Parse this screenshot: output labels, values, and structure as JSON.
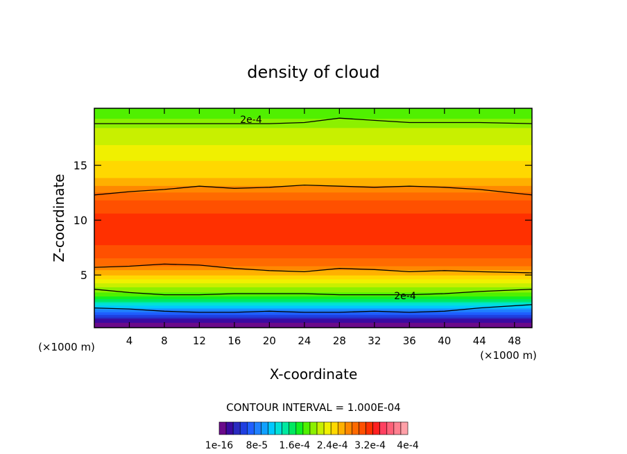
{
  "chart_data": {
    "type": "heatmap",
    "title": "density of cloud",
    "xlabel": "X-coordinate",
    "ylabel": "Z-coordinate",
    "x_unit": "(×1000 m)",
    "x_unit_right": "(×1000 m)",
    "xlim": [
      0,
      50
    ],
    "ylim": [
      0.2,
      20.2
    ],
    "x_ticks": [
      4,
      8,
      12,
      16,
      20,
      24,
      28,
      32,
      36,
      40,
      44,
      48
    ],
    "y_ticks": [
      5,
      10,
      15
    ],
    "contour_interval_text": "CONTOUR INTERVAL = 1.000E-04",
    "contour_labels": [
      "2e-4",
      "2e-4"
    ],
    "colorbar": {
      "labels": [
        "1e-16",
        "8e-5",
        "1.6e-4",
        "2.4e-4",
        "3.2e-4",
        "4e-4"
      ],
      "min": 1e-16,
      "max": 0.0004,
      "colors": [
        "#6a0a8a",
        "#3a0aa0",
        "#2a2ac0",
        "#1f3fe0",
        "#1f5fff",
        "#1f80ff",
        "#10a0ff",
        "#00c8ff",
        "#00e0d8",
        "#00e8a0",
        "#00e860",
        "#10f020",
        "#50f000",
        "#8cf000",
        "#c8f000",
        "#f0f000",
        "#ffd800",
        "#ffb000",
        "#ff8800",
        "#ff6a00",
        "#ff5000",
        "#ff3000",
        "#ff2020",
        "#ff4060",
        "#ff6078",
        "#ff8090",
        "#ffa0a8"
      ]
    },
    "profile": {
      "z": [
        0.2,
        0.6,
        1.0,
        1.4,
        1.8,
        2.2,
        2.6,
        3.0,
        3.5,
        4.0,
        4.5,
        5.0,
        5.5,
        6.0,
        7.0,
        8.0,
        9.0,
        10.0,
        11.0,
        12.0,
        12.5,
        13.0,
        13.5,
        14.0,
        14.5,
        15.0,
        15.5,
        16.0,
        16.5,
        17.0,
        17.5,
        18.0,
        18.5,
        19.0,
        19.5,
        20.2
      ],
      "density": [
        0,
        1e-05,
        3e-05,
        6e-05,
        9e-05,
        0.00012,
        0.00015,
        0.00018,
        0.0002,
        0.00022,
        0.00024,
        0.00026,
        0.00028,
        0.0003,
        0.000315,
        0.000325,
        0.00033,
        0.00033,
        0.00032,
        0.000305,
        0.000295,
        0.00028,
        0.00027,
        0.00026,
        0.000255,
        0.00025,
        0.000245,
        0.00024,
        0.000235,
        0.00023,
        0.000225,
        0.00022,
        0.000215,
        0.000205,
        0.000195,
        0.000185
      ]
    },
    "contour_lines": [
      {
        "z": [
          18.8,
          18.8,
          18.8,
          18.8,
          18.8,
          18.8,
          18.9,
          19.3,
          19.1,
          18.9,
          18.9,
          18.9,
          18.8
        ]
      },
      {
        "z": [
          12.3,
          12.6,
          12.8,
          13.1,
          12.9,
          13.0,
          13.2,
          13.1,
          13.0,
          13.1,
          13.0,
          12.8,
          12.3
        ]
      },
      {
        "z": [
          5.7,
          5.8,
          6.0,
          5.9,
          5.6,
          5.4,
          5.3,
          5.6,
          5.5,
          5.3,
          5.4,
          5.3,
          5.2
        ]
      },
      {
        "z": [
          3.7,
          3.4,
          3.2,
          3.2,
          3.3,
          3.3,
          3.3,
          3.2,
          3.2,
          3.2,
          3.3,
          3.5,
          3.7
        ]
      },
      {
        "z": [
          2.0,
          1.9,
          1.7,
          1.6,
          1.6,
          1.7,
          1.6,
          1.6,
          1.7,
          1.6,
          1.7,
          2.0,
          2.3
        ]
      }
    ],
    "contour_x": [
      0,
      4,
      8,
      12,
      16,
      20,
      24,
      28,
      32,
      36,
      40,
      44,
      50
    ]
  }
}
